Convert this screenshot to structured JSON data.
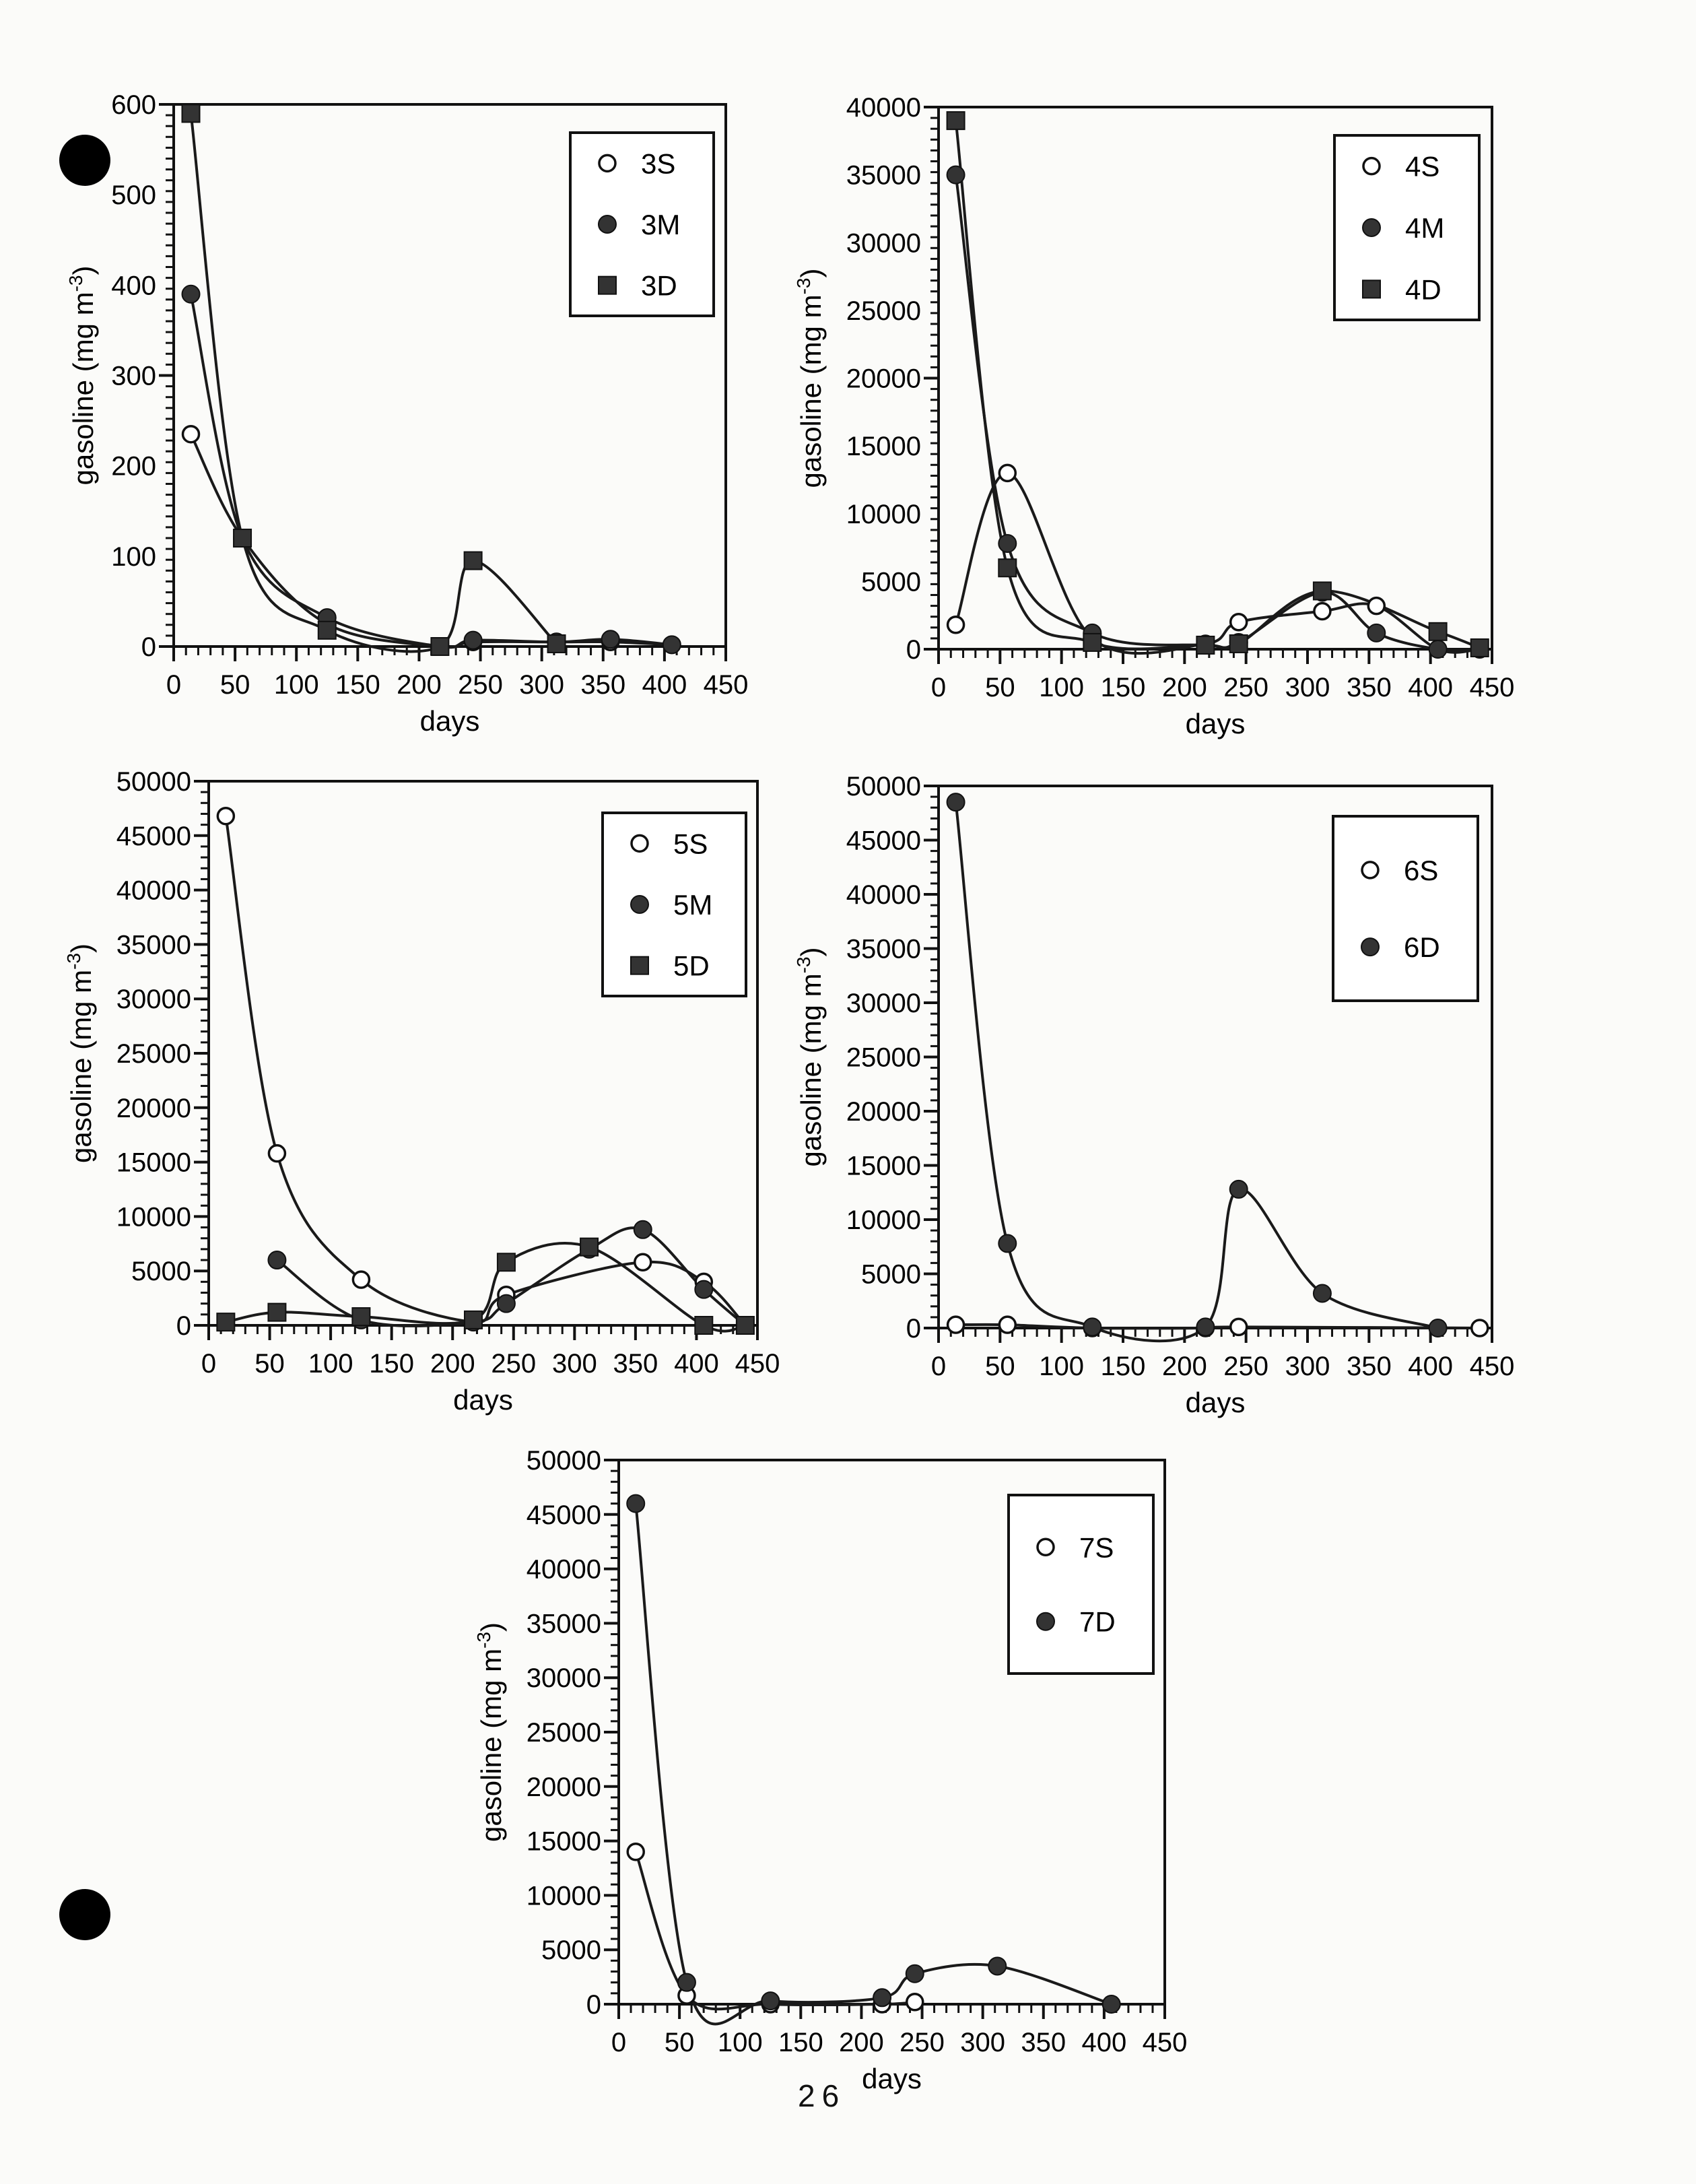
{
  "page_number": "26",
  "chart_data": [
    {
      "type": "line",
      "id": "3",
      "xlabel": "days",
      "ylabel": "gasoline (mg m",
      "ylabel_sup": "-3",
      "ylabel_end": ")",
      "xlim": [
        0,
        450
      ],
      "ylim": [
        0,
        600
      ],
      "xticks": [
        0,
        50,
        100,
        150,
        200,
        250,
        300,
        350,
        400,
        450
      ],
      "yticks": [
        0,
        100,
        200,
        300,
        400,
        500,
        600
      ],
      "series": [
        {
          "name": "3S",
          "marker": "open-circle",
          "points": [
            [
              14,
              235
            ],
            [
              56,
              120
            ],
            [
              125,
              25
            ],
            [
              217,
              0
            ],
            [
              244,
              5
            ],
            [
              312,
              5
            ],
            [
              356,
              5
            ],
            [
              406,
              2
            ]
          ]
        },
        {
          "name": "3M",
          "marker": "filled-circle",
          "points": [
            [
              14,
              390
            ],
            [
              56,
              120
            ],
            [
              125,
              32
            ],
            [
              217,
              0
            ],
            [
              244,
              7
            ],
            [
              312,
              5
            ],
            [
              356,
              8
            ],
            [
              406,
              2
            ]
          ]
        },
        {
          "name": "3D",
          "marker": "filled-square",
          "points": [
            [
              14,
              590
            ],
            [
              56,
              120
            ],
            [
              125,
              18
            ],
            [
              217,
              0
            ],
            [
              244,
              95
            ],
            [
              312,
              3
            ]
          ]
        }
      ]
    },
    {
      "type": "line",
      "id": "4",
      "xlabel": "days",
      "ylabel": "gasoline (mg m",
      "ylabel_sup": "-3",
      "ylabel_end": ")",
      "xlim": [
        0,
        450
      ],
      "ylim": [
        0,
        40000
      ],
      "xticks": [
        0,
        50,
        100,
        150,
        200,
        250,
        300,
        350,
        400,
        450
      ],
      "yticks": [
        0,
        5000,
        10000,
        15000,
        20000,
        25000,
        30000,
        35000,
        40000
      ],
      "series": [
        {
          "name": "4S",
          "marker": "open-circle",
          "points": [
            [
              14,
              1800
            ],
            [
              56,
              13000
            ],
            [
              125,
              800
            ],
            [
              217,
              400
            ],
            [
              244,
              2000
            ],
            [
              312,
              2800
            ],
            [
              356,
              3200
            ],
            [
              406,
              0
            ],
            [
              440,
              0
            ]
          ]
        },
        {
          "name": "4M",
          "marker": "filled-circle",
          "points": [
            [
              14,
              35000
            ],
            [
              56,
              7800
            ],
            [
              125,
              1200
            ],
            [
              217,
              300
            ],
            [
              244,
              500
            ],
            [
              312,
              4200
            ],
            [
              356,
              1200
            ],
            [
              406,
              0
            ],
            [
              440,
              0
            ]
          ]
        },
        {
          "name": "4D",
          "marker": "filled-square",
          "points": [
            [
              14,
              39000
            ],
            [
              56,
              6000
            ],
            [
              125,
              500
            ],
            [
              217,
              300
            ],
            [
              244,
              400
            ],
            [
              312,
              4300
            ],
            [
              406,
              1300
            ],
            [
              440,
              100
            ]
          ]
        }
      ]
    },
    {
      "type": "line",
      "id": "5",
      "xlabel": "days",
      "ylabel": "gasoline (mg m",
      "ylabel_sup": "-3",
      "ylabel_end": ")",
      "xlim": [
        0,
        450
      ],
      "ylim": [
        0,
        50000
      ],
      "xticks": [
        0,
        50,
        100,
        150,
        200,
        250,
        300,
        350,
        400,
        450
      ],
      "yticks": [
        0,
        5000,
        10000,
        15000,
        20000,
        25000,
        30000,
        35000,
        40000,
        45000,
        50000
      ],
      "series": [
        {
          "name": "5S",
          "marker": "open-circle",
          "points": [
            [
              14,
              46800
            ],
            [
              56,
              15800
            ],
            [
              125,
              4200
            ],
            [
              217,
              300
            ],
            [
              244,
              2800
            ],
            [
              356,
              5800
            ],
            [
              406,
              4000
            ],
            [
              440,
              0
            ]
          ]
        },
        {
          "name": "5M",
          "marker": "filled-circle",
          "points": [
            [
              56,
              6000
            ],
            [
              125,
              500
            ],
            [
              217,
              300
            ],
            [
              244,
              2000
            ],
            [
              312,
              7000
            ],
            [
              356,
              8800
            ],
            [
              406,
              3300
            ],
            [
              440,
              0
            ]
          ]
        },
        {
          "name": "5D",
          "marker": "filled-square",
          "points": [
            [
              14,
              300
            ],
            [
              56,
              1200
            ],
            [
              125,
              800
            ],
            [
              217,
              500
            ],
            [
              244,
              5800
            ],
            [
              312,
              7200
            ],
            [
              406,
              0
            ],
            [
              440,
              0
            ]
          ]
        }
      ]
    },
    {
      "type": "line",
      "id": "6",
      "xlabel": "days",
      "ylabel": "gasoline (mg m",
      "ylabel_sup": "-3",
      "ylabel_end": ")",
      "xlim": [
        0,
        450
      ],
      "ylim": [
        0,
        50000
      ],
      "xticks": [
        0,
        50,
        100,
        150,
        200,
        250,
        300,
        350,
        400,
        450
      ],
      "yticks": [
        0,
        5000,
        10000,
        15000,
        20000,
        25000,
        30000,
        35000,
        40000,
        45000,
        50000
      ],
      "series": [
        {
          "name": "6S",
          "marker": "open-circle",
          "points": [
            [
              14,
              300
            ],
            [
              56,
              300
            ],
            [
              125,
              0
            ],
            [
              217,
              0
            ],
            [
              244,
              100
            ],
            [
              440,
              0
            ]
          ]
        },
        {
          "name": "6D",
          "marker": "filled-circle",
          "points": [
            [
              14,
              48500
            ],
            [
              56,
              7800
            ],
            [
              125,
              100
            ],
            [
              217,
              100
            ],
            [
              244,
              12800
            ],
            [
              312,
              3200
            ],
            [
              406,
              0
            ]
          ]
        }
      ]
    },
    {
      "type": "line",
      "id": "7",
      "xlabel": "days",
      "ylabel": "gasoline (mg m",
      "ylabel_sup": "-3",
      "ylabel_end": ")",
      "xlim": [
        0,
        450
      ],
      "ylim": [
        0,
        50000
      ],
      "xticks": [
        0,
        50,
        100,
        150,
        200,
        250,
        300,
        350,
        400,
        450
      ],
      "yticks": [
        0,
        5000,
        10000,
        15000,
        20000,
        25000,
        30000,
        35000,
        40000,
        45000,
        50000
      ],
      "series": [
        {
          "name": "7S",
          "marker": "open-circle",
          "points": [
            [
              14,
              14000
            ],
            [
              56,
              800
            ],
            [
              125,
              0
            ],
            [
              217,
              0
            ],
            [
              244,
              200
            ]
          ]
        },
        {
          "name": "7D",
          "marker": "filled-circle",
          "points": [
            [
              14,
              46000
            ],
            [
              56,
              2000
            ],
            [
              125,
              300
            ],
            [
              217,
              600
            ],
            [
              244,
              2800
            ],
            [
              312,
              3500
            ],
            [
              406,
              0
            ]
          ]
        }
      ]
    }
  ]
}
